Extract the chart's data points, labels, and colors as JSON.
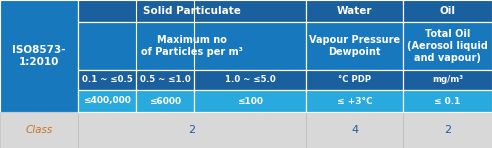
{
  "left_col_text": "ISO8573-\n1:2010",
  "header_row1": [
    "Solid Particulate",
    "Water",
    "Oil"
  ],
  "header_row2": [
    "Maximum no\nof Particles per m³",
    "Vapour Pressure\nDewpoint",
    "Total Oil\n(Aerosol liquid\nand vapour)"
  ],
  "header_row3": [
    "0.1 ~ ≤0.5",
    "0.5 ~ ≤1.0",
    "1.0 ~ ≤5.0",
    "°C PDP",
    "mg/m³"
  ],
  "data_row": [
    "≤400,000",
    "≤6000",
    "≤100",
    "≤ +3°C",
    "≤ 0.1"
  ],
  "class_row_label": "Class",
  "class_row_vals": [
    "2",
    "4",
    "2"
  ],
  "dark_blue": "#1a5f9e",
  "mid_blue": "#1878be",
  "light_blue": "#29aadf",
  "lighter_blue": "#50bfe8",
  "light_gray": "#d8d8d8",
  "white": "#ffffff",
  "text_white": "#ffffff",
  "text_dark_blue": "#1a5f9e",
  "text_class": "#c07820"
}
